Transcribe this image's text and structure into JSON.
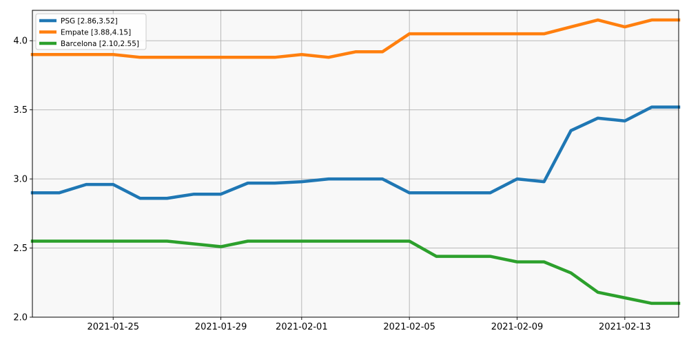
{
  "chart_data": {
    "type": "line",
    "x": [
      "2021-01-22",
      "2021-01-23",
      "2021-01-24",
      "2021-01-25",
      "2021-01-26",
      "2021-01-27",
      "2021-01-28",
      "2021-01-29",
      "2021-01-30",
      "2021-01-31",
      "2021-02-01",
      "2021-02-02",
      "2021-02-03",
      "2021-02-04",
      "2021-02-05",
      "2021-02-06",
      "2021-02-07",
      "2021-02-08",
      "2021-02-09",
      "2021-02-10",
      "2021-02-11",
      "2021-02-12",
      "2021-02-13",
      "2021-02-14",
      "2021-02-15"
    ],
    "series": [
      {
        "name": "PSG [2.86,3.52]",
        "color": "#1f77b4",
        "values": [
          2.9,
          2.9,
          2.96,
          2.96,
          2.86,
          2.86,
          2.89,
          2.89,
          2.97,
          2.97,
          2.98,
          3.0,
          3.0,
          3.0,
          2.9,
          2.9,
          2.9,
          2.9,
          3.0,
          2.98,
          3.35,
          3.44,
          3.42,
          3.52,
          3.52
        ]
      },
      {
        "name": "Empate [3.88,4.15]",
        "color": "#ff7f0e",
        "values": [
          3.9,
          3.9,
          3.9,
          3.9,
          3.88,
          3.88,
          3.88,
          3.88,
          3.88,
          3.88,
          3.9,
          3.88,
          3.92,
          3.92,
          4.05,
          4.05,
          4.05,
          4.05,
          4.05,
          4.05,
          4.1,
          4.15,
          4.1,
          4.15,
          4.15
        ]
      },
      {
        "name": "Barcelona [2.10,2.55]",
        "color": "#2ca02c",
        "values": [
          2.55,
          2.55,
          2.55,
          2.55,
          2.55,
          2.55,
          2.53,
          2.51,
          2.55,
          2.55,
          2.55,
          2.55,
          2.55,
          2.55,
          2.55,
          2.44,
          2.44,
          2.44,
          2.4,
          2.4,
          2.32,
          2.18,
          2.14,
          2.1,
          2.1
        ]
      }
    ],
    "xticks": [
      "2021-01-25",
      "2021-01-29",
      "2021-02-01",
      "2021-02-05",
      "2021-02-09",
      "2021-02-13"
    ],
    "yticks": [
      "2.0",
      "2.5",
      "3.0",
      "3.5",
      "4.0"
    ],
    "ylim": [
      2.0,
      4.22
    ],
    "xlim": [
      "2021-01-22",
      "2021-02-15"
    ],
    "grid": true,
    "legend": "top-left",
    "title": "",
    "xlabel": "",
    "ylabel": ""
  }
}
